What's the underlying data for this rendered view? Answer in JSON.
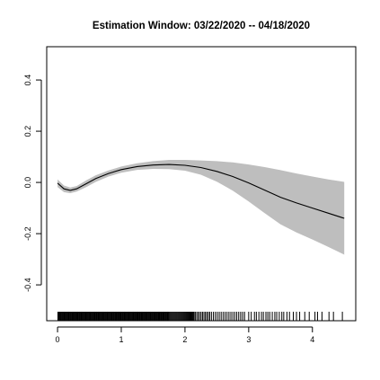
{
  "chart_data": {
    "type": "line",
    "title": "Estimation Window: 03/22/2020 -- 04/18/2020",
    "xlabel": "",
    "ylabel": "",
    "xlim": [
      -0.17,
      4.68
    ],
    "ylim": [
      -0.54,
      0.53
    ],
    "x_ticks": [
      0,
      1,
      2,
      3,
      4
    ],
    "y_ticks": [
      -0.4,
      -0.2,
      0.0,
      0.2,
      0.4
    ],
    "x_tick_labels": [
      "0",
      "1",
      "2",
      "3",
      "4"
    ],
    "y_tick_labels": [
      "-0.4",
      "-0.2",
      "0.0",
      "0.2",
      "0.4"
    ],
    "series": [
      {
        "role": "fit",
        "x": [
          0.0,
          0.1,
          0.2,
          0.3,
          0.45,
          0.6,
          0.8,
          1.0,
          1.25,
          1.5,
          1.75,
          2.0,
          2.25,
          2.5,
          2.75,
          3.0,
          3.25,
          3.5,
          3.75,
          4.0,
          4.25,
          4.5
        ],
        "y": [
          -0.003,
          -0.025,
          -0.031,
          -0.025,
          -0.005,
          0.015,
          0.035,
          0.05,
          0.062,
          0.068,
          0.07,
          0.067,
          0.058,
          0.043,
          0.023,
          -0.002,
          -0.03,
          -0.058,
          -0.08,
          -0.1,
          -0.12,
          -0.14
        ]
      },
      {
        "role": "confidence-band",
        "x": [
          0.0,
          0.1,
          0.2,
          0.3,
          0.45,
          0.6,
          0.8,
          1.0,
          1.25,
          1.5,
          1.75,
          2.0,
          2.25,
          2.5,
          2.75,
          3.0,
          3.25,
          3.5,
          3.75,
          4.0,
          4.25,
          4.5
        ],
        "upper": [
          0.012,
          -0.012,
          -0.02,
          -0.014,
          0.008,
          0.028,
          0.047,
          0.062,
          0.075,
          0.083,
          0.088,
          0.088,
          0.086,
          0.083,
          0.078,
          0.07,
          0.06,
          0.048,
          0.035,
          0.023,
          0.012,
          0.002
        ],
        "lower": [
          -0.018,
          -0.038,
          -0.042,
          -0.036,
          -0.018,
          0.002,
          0.023,
          0.038,
          0.049,
          0.053,
          0.052,
          0.046,
          0.03,
          0.003,
          -0.032,
          -0.074,
          -0.12,
          -0.164,
          -0.195,
          -0.223,
          -0.252,
          -0.282
        ]
      }
    ],
    "rug": {
      "dense_ranges": [
        [
          0.0,
          1.75
        ],
        [
          1.75,
          2.15
        ],
        [
          2.15,
          2.4
        ],
        [
          2.4,
          2.95
        ]
      ],
      "dense_counts": [
        150,
        28,
        11,
        18
      ],
      "x": [
        3.0,
        3.04,
        3.09,
        3.12,
        3.16,
        3.2,
        3.23,
        3.27,
        3.3,
        3.33,
        3.37,
        3.41,
        3.44,
        3.48,
        3.52,
        3.55,
        3.6,
        3.64,
        3.7,
        3.75,
        3.8,
        3.88,
        3.95,
        4.04,
        4.08,
        4.15,
        4.26,
        4.33,
        4.47
      ]
    },
    "grid": false,
    "legend": "none",
    "colors": {
      "band": "#bebebe",
      "line": "#000000",
      "axis": "#000000"
    }
  }
}
